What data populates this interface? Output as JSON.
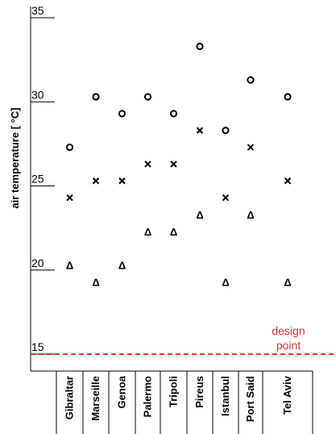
{
  "chart_data": {
    "type": "scatter",
    "categories": [
      "Gibraltar",
      "Marseille",
      "Genoa",
      "Palermo",
      "Tripoli",
      "Pireus",
      "Istanbul",
      "Port Said",
      "Tel Aviv"
    ],
    "ylabel": "air temperature   [ °C]",
    "ylim": [
      15,
      35
    ],
    "yticks": [
      "15",
      "20",
      "25",
      "30",
      "35"
    ],
    "series": [
      {
        "marker": "o",
        "values": [
          27.3,
          30.3,
          29.3,
          30.3,
          29.3,
          33.3,
          28.3,
          31.3,
          30.3
        ]
      },
      {
        "marker": "x",
        "values": [
          24.3,
          25.3,
          25.3,
          26.3,
          26.3,
          28.3,
          24.3,
          27.3,
          25.3
        ]
      },
      {
        "marker": "Δ",
        "values": [
          20.3,
          19.3,
          20.3,
          22.3,
          22.3,
          23.3,
          19.3,
          23.3,
          19.3
        ]
      }
    ],
    "reference_line": {
      "value": 15,
      "label_line1": "design",
      "label_line2": "point",
      "color": "#e03030"
    }
  }
}
